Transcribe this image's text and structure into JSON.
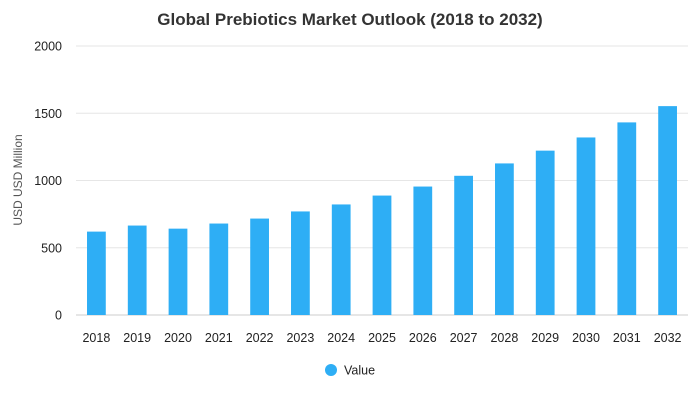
{
  "chart_data": {
    "type": "bar",
    "title": "Global Prebiotics Market Outlook (2018 to 2032)",
    "xlabel": "",
    "ylabel": "USD USD Million",
    "categories": [
      "2018",
      "2019",
      "2020",
      "2021",
      "2022",
      "2023",
      "2024",
      "2025",
      "2026",
      "2027",
      "2028",
      "2029",
      "2030",
      "2031",
      "2032"
    ],
    "series": [
      {
        "name": "Value",
        "color": "#2eaef5",
        "values": [
          620,
          665,
          642,
          680,
          717,
          770,
          822,
          888,
          955,
          1035,
          1127,
          1222,
          1320,
          1432,
          1553
        ]
      }
    ],
    "ylim": [
      0,
      2000
    ],
    "yticks": [
      0,
      500,
      1000,
      1500,
      2000
    ],
    "grid": true,
    "legend_position": "bottom"
  }
}
